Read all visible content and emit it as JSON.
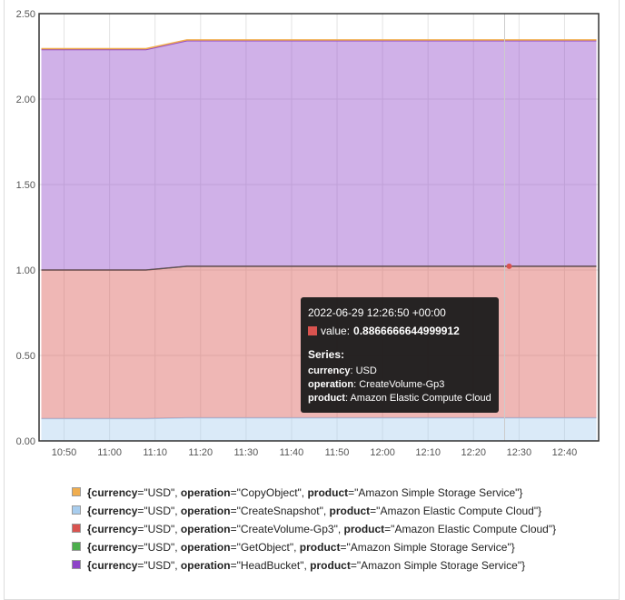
{
  "chart_data": {
    "type": "area",
    "stacked": true,
    "x": [
      "10:45",
      "10:55",
      "11:08",
      "11:17",
      "11:30",
      "12:00",
      "12:30",
      "12:47"
    ],
    "x_ticks": [
      "10:50",
      "11:00",
      "11:10",
      "11:20",
      "11:30",
      "11:40",
      "11:50",
      "12:00",
      "12:10",
      "12:20",
      "12:30",
      "12:40"
    ],
    "y_ticks": [
      "0.00",
      "0.50",
      "1.00",
      "1.50",
      "2.00",
      "2.50"
    ],
    "ylim": [
      0,
      2.5
    ],
    "grid": true,
    "series": [
      {
        "name": "{currency=\"USD\", operation=\"CreateSnapshot\", product=\"Amazon Elastic Compute Cloud\"}",
        "color": "#a8cdee",
        "values": [
          0.13,
          0.13,
          0.13,
          0.135,
          0.135,
          0.135,
          0.135,
          0.135
        ]
      },
      {
        "name": "{currency=\"USD\", operation=\"CreateVolume-Gp3\", product=\"Amazon Elastic Compute Cloud\"}",
        "color": "#d9534f",
        "values": [
          0.87,
          0.87,
          0.87,
          0.8866666644999912,
          0.8866666644999912,
          0.8866666644999912,
          0.8866666644999912,
          0.8866666644999912
        ]
      },
      {
        "name": "{currency=\"USD\", operation=\"HeadBucket\", product=\"Amazon Simple Storage Service\"}",
        "color": "#8e44c8",
        "values": [
          1.29,
          1.29,
          1.29,
          1.32,
          1.32,
          1.32,
          1.32,
          1.32
        ]
      },
      {
        "name": "{currency=\"USD\", operation=\"CopyObject\", product=\"Amazon Simple Storage Service\"}",
        "color": "#f0ad4e",
        "values": [
          0.005,
          0.005,
          0.005,
          0.005,
          0.005,
          0.005,
          0.005,
          0.005
        ]
      }
    ],
    "hover_x": "12:26:50"
  },
  "tooltip": {
    "time": "2022-06-29 12:26:50 +00:00",
    "value_label": "value:",
    "value": "0.8866666644999912",
    "series_heading": "Series:",
    "rows": [
      {
        "key": "currency",
        "value": ": USD"
      },
      {
        "key": "operation",
        "value": ": CreateVolume-Gp3"
      },
      {
        "key": "product",
        "value": ": Amazon Elastic Compute Cloud"
      }
    ]
  },
  "legend": [
    {
      "color": "#f0ad4e",
      "parts": [
        [
          "b",
          "{currency"
        ],
        [
          "t",
          "=\"USD\", "
        ],
        [
          "b",
          "operation"
        ],
        [
          "t",
          "=\"CopyObject\", "
        ],
        [
          "b",
          "product"
        ],
        [
          "t",
          "=\"Amazon Simple Storage Service\"}"
        ]
      ]
    },
    {
      "color": "#a8cdee",
      "parts": [
        [
          "b",
          "{currency"
        ],
        [
          "t",
          "=\"USD\", "
        ],
        [
          "b",
          "operation"
        ],
        [
          "t",
          "=\"CreateSnapshot\", "
        ],
        [
          "b",
          "product"
        ],
        [
          "t",
          "=\"Amazon Elastic Compute Cloud\"}"
        ]
      ]
    },
    {
      "color": "#d9534f",
      "parts": [
        [
          "b",
          "{currency"
        ],
        [
          "t",
          "=\"USD\", "
        ],
        [
          "b",
          "operation"
        ],
        [
          "t",
          "=\"CreateVolume-Gp3\", "
        ],
        [
          "b",
          "product"
        ],
        [
          "t",
          "=\"Amazon Elastic Compute Cloud\"}"
        ]
      ]
    },
    {
      "color": "#4cae4c",
      "parts": [
        [
          "b",
          "{currency"
        ],
        [
          "t",
          "=\"USD\", "
        ],
        [
          "b",
          "operation"
        ],
        [
          "t",
          "=\"GetObject\", "
        ],
        [
          "b",
          "product"
        ],
        [
          "t",
          "=\"Amazon Simple Storage Service\"}"
        ]
      ]
    },
    {
      "color": "#8e44c8",
      "parts": [
        [
          "b",
          "{currency"
        ],
        [
          "t",
          "=\"USD\", "
        ],
        [
          "b",
          "operation"
        ],
        [
          "t",
          "=\"HeadBucket\", "
        ],
        [
          "b",
          "product"
        ],
        [
          "t",
          "=\"Amazon Simple Storage Service\"}"
        ]
      ]
    }
  ]
}
